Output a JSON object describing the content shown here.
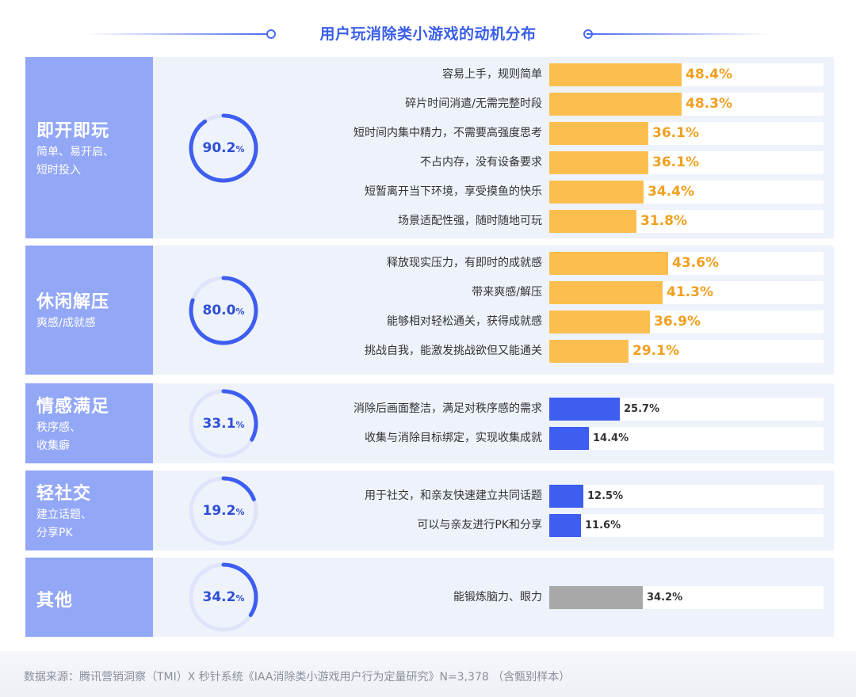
{
  "title": "用户玩消除类小游戏的动机分布",
  "source_note": "数据来源：腾讯营销洞察（TMI）X 秒针系统《IAA消除类小游戏用户行为定量研究》N=3,378 （含甄别样本）",
  "colors": {
    "accent_bar": "#fcbf4f",
    "blue_bar": "#3d5ef0",
    "gray_bar": "#a8a8a8",
    "label_panel": "#93a7f7",
    "ring_track": "#dfe4fa",
    "ring_fill": "#3d5ef0",
    "highlight_value": "#f0a020"
  },
  "chart_data": {
    "type": "bar",
    "orientation": "horizontal",
    "title": "用户玩消除类小游戏的动机分布",
    "xlim": [
      0,
      100
    ],
    "unit": "%",
    "groups": [
      {
        "name": "即开即玩",
        "desc": "简单、易开启、\n短时投入",
        "total_value": 90.2,
        "total_label": "90.2",
        "bar_style": "highlight",
        "items": [
          {
            "label": "容易上手，规则简单",
            "value": 48.4,
            "value_label": "48.4%"
          },
          {
            "label": "碎片时间消遣/无需完整时段",
            "value": 48.3,
            "value_label": "48.3%"
          },
          {
            "label": "短时间内集中精力，不需要高强度思考",
            "value": 36.1,
            "value_label": "36.1%"
          },
          {
            "label": "不占内存，没有设备要求",
            "value": 36.1,
            "value_label": "36.1%"
          },
          {
            "label": "短暂离开当下环境，享受摸鱼的快乐",
            "value": 34.4,
            "value_label": "34.4%"
          },
          {
            "label": "场景适配性强，随时随地可玩",
            "value": 31.8,
            "value_label": "31.8%"
          }
        ]
      },
      {
        "name": "休闲解压",
        "desc": "爽感/成就感",
        "total_value": 80.0,
        "total_label": "80.0",
        "bar_style": "highlight",
        "items": [
          {
            "label": "释放现实压力，有即时的成就感",
            "value": 43.6,
            "value_label": "43.6%"
          },
          {
            "label": "带来爽感/解压",
            "value": 41.3,
            "value_label": "41.3%"
          },
          {
            "label": "能够相对轻松通关，获得成就感",
            "value": 36.9,
            "value_label": "36.9%"
          },
          {
            "label": "挑战自我，能激发挑战欲但又能通关",
            "value": 29.1,
            "value_label": "29.1%"
          }
        ]
      },
      {
        "name": "情感满足",
        "desc": "秩序感、\n收集癖",
        "total_value": 33.1,
        "total_label": "33.1",
        "bar_style": "blue",
        "items": [
          {
            "label": "消除后画面整洁，满足对秩序感的需求",
            "value": 25.7,
            "value_label": "25.7%"
          },
          {
            "label": "收集与消除目标绑定，实现收集成就",
            "value": 14.4,
            "value_label": "14.4%"
          }
        ]
      },
      {
        "name": "轻社交",
        "desc": "建立话题、\n分享PK",
        "total_value": 19.2,
        "total_label": "19.2",
        "bar_style": "blue",
        "items": [
          {
            "label": "用于社交，和亲友快速建立共同话题",
            "value": 12.5,
            "value_label": "12.5%"
          },
          {
            "label": "可以与亲友进行PK和分享",
            "value": 11.6,
            "value_label": "11.6%"
          }
        ]
      },
      {
        "name": "其他",
        "desc": "",
        "total_value": 34.2,
        "total_label": "34.2",
        "bar_style": "gray",
        "items": [
          {
            "label": "能锻炼脑力、眼力",
            "value": 34.2,
            "value_label": "34.2%"
          }
        ]
      }
    ]
  }
}
